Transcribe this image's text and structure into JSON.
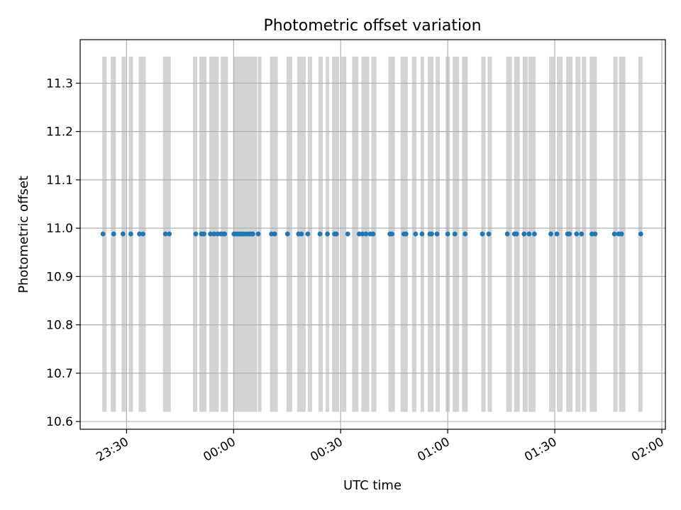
{
  "chart_data": {
    "type": "scatter",
    "title": "Photometric offset variation",
    "xlabel": "UTC time",
    "ylabel": "Photometric offset",
    "x_tick_labels": [
      "23:30",
      "00:00",
      "00:30",
      "01:00",
      "01:30",
      "02:00"
    ],
    "x_tick_values_min": [
      -30,
      0,
      30,
      60,
      90,
      120
    ],
    "y_tick_labels": [
      "10.6",
      "10.7",
      "10.8",
      "10.9",
      "11.0",
      "11.1",
      "11.2",
      "11.3"
    ],
    "y_tick_values": [
      10.6,
      10.7,
      10.8,
      10.9,
      11.0,
      11.1,
      11.2,
      11.3
    ],
    "xlim_min": [
      -43,
      121
    ],
    "ylim": [
      10.584,
      11.39
    ],
    "grid": true,
    "marker_color": "#1f77b4",
    "band_color": "#d3d3d3",
    "band_y_range": [
      10.62,
      11.355
    ],
    "x_unit": "minutes relative to 00:00 UTC",
    "points": {
      "x": [
        -36.6,
        -33.6,
        -31.0,
        -28.8,
        -26.4,
        -25.4,
        -19.1,
        -18.0,
        -10.6,
        -9.0,
        -8.3,
        -6.5,
        -5.5,
        -4.5,
        -3.6,
        -2.9,
        -2.5,
        0.1,
        0.5,
        1.0,
        1.5,
        2.0,
        2.5,
        2.8,
        3.5,
        4.1,
        4.6,
        5.1,
        5.4,
        6.9,
        10.6,
        11.5,
        15.1,
        18.2,
        19.0,
        20.8,
        24.2,
        26.3,
        28.3,
        28.8,
        32.0,
        35.2,
        36.1,
        37.1,
        38.3,
        39.1,
        43.8,
        44.4,
        47.7,
        48.3,
        51.0,
        52.8,
        55.0,
        55.5,
        57.0,
        60.0,
        62.0,
        64.9,
        69.7,
        71.5,
        76.7,
        78.7,
        79.3,
        81.4,
        82.8,
        84.3,
        88.9,
        90.6,
        93.6,
        94.1,
        96.1,
        97.5,
        100.4,
        101.3,
        106.7,
        107.9,
        108.7,
        114.1
      ],
      "y": [
        10.988,
        10.988,
        10.988,
        10.988,
        10.988,
        10.988,
        10.988,
        10.988,
        10.988,
        10.988,
        10.988,
        10.988,
        10.988,
        10.988,
        10.988,
        10.988,
        10.988,
        10.988,
        10.988,
        10.988,
        10.988,
        10.988,
        10.988,
        10.988,
        10.988,
        10.988,
        10.988,
        10.988,
        10.988,
        10.988,
        10.988,
        10.988,
        10.988,
        10.988,
        10.988,
        10.988,
        10.988,
        10.988,
        10.988,
        10.988,
        10.988,
        10.988,
        10.988,
        10.988,
        10.988,
        10.988,
        10.988,
        10.988,
        10.988,
        10.988,
        10.988,
        10.988,
        10.988,
        10.988,
        10.988,
        10.988,
        10.988,
        10.988,
        10.988,
        10.988,
        10.988,
        10.988,
        10.988,
        10.988,
        10.988,
        10.988,
        10.988,
        10.988,
        10.988,
        10.988,
        10.988,
        10.988,
        10.988,
        10.988,
        10.988,
        10.988,
        10.988,
        10.988
      ]
    },
    "bands_min": [
      [
        -36.8,
        -35.6
      ],
      [
        -34.4,
        -33.0
      ],
      [
        -31.4,
        -30.2
      ],
      [
        -29.4,
        -28.2
      ],
      [
        -26.6,
        -24.6
      ],
      [
        -19.8,
        -17.6
      ],
      [
        -11.4,
        -10.2
      ],
      [
        -9.6,
        -7.6
      ],
      [
        -6.8,
        -4.2
      ],
      [
        -3.6,
        -1.6
      ],
      [
        0.0,
        6.6
      ],
      [
        6.8,
        7.8
      ],
      [
        10.2,
        12.4
      ],
      [
        14.8,
        16.4
      ],
      [
        17.8,
        20.2
      ],
      [
        20.8,
        22.0
      ],
      [
        23.8,
        25.0
      ],
      [
        25.8,
        26.8
      ],
      [
        27.6,
        29.6
      ],
      [
        30.2,
        31.6
      ],
      [
        33.2,
        35.0
      ],
      [
        35.8,
        38.0
      ],
      [
        38.6,
        40.0
      ],
      [
        43.4,
        45.2
      ],
      [
        46.8,
        48.8
      ],
      [
        50.0,
        51.2
      ],
      [
        52.4,
        53.4
      ],
      [
        54.4,
        56.0
      ],
      [
        56.6,
        57.8
      ],
      [
        59.4,
        60.6
      ],
      [
        61.4,
        63.2
      ],
      [
        64.0,
        65.6
      ],
      [
        69.4,
        70.6
      ],
      [
        71.2,
        72.4
      ],
      [
        76.4,
        78.0
      ],
      [
        78.6,
        80.2
      ],
      [
        81.0,
        82.4
      ],
      [
        82.6,
        84.6
      ],
      [
        88.4,
        89.8
      ],
      [
        90.6,
        92.2
      ],
      [
        93.2,
        95.0
      ],
      [
        95.8,
        97.2
      ],
      [
        97.6,
        98.8
      ],
      [
        99.8,
        101.8
      ],
      [
        106.4,
        107.6
      ],
      [
        108.0,
        109.8
      ],
      [
        113.4,
        114.6
      ]
    ]
  }
}
